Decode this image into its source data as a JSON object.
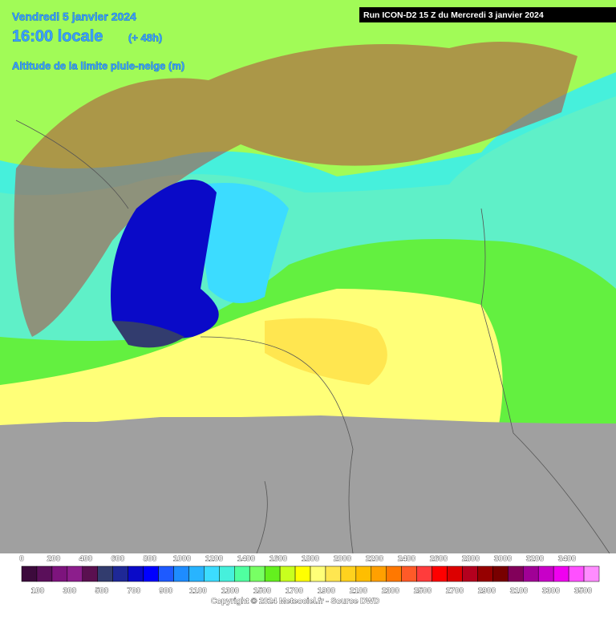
{
  "header": {
    "date": "Vendredi 5 janvier 2024",
    "time": "16:00 locale",
    "lead": "(+ 48h)",
    "variable": "Altitude de la limite pluie-neige (m)",
    "run": "Run ICON-D2 15 Z du Mercredi 3 janvier 2024"
  },
  "legend": {
    "top_labels": [
      0,
      200,
      400,
      600,
      800,
      1000,
      1200,
      1400,
      1600,
      1800,
      2000,
      2200,
      2400,
      2600,
      2800,
      3000,
      3200,
      3400
    ],
    "bottom_labels": [
      100,
      300,
      500,
      700,
      900,
      1100,
      1300,
      1500,
      1700,
      1900,
      2100,
      2300,
      2500,
      2700,
      2900,
      3100,
      3300,
      3500
    ],
    "colors": [
      "#3c0a3c",
      "#5a0f5a",
      "#7d147d",
      "#8c1e8c",
      "#5a1050",
      "#323c6e",
      "#1e2896",
      "#0a0ac8",
      "#0000ff",
      "#1e5aff",
      "#1e8cff",
      "#28b4ff",
      "#3cdcff",
      "#46f0dc",
      "#50ffa0",
      "#78ff64",
      "#64f01e",
      "#c8ff1e",
      "#ffff00",
      "#ffff78",
      "#ffe650",
      "#ffd21e",
      "#ffbe00",
      "#ffa000",
      "#ff7800",
      "#ff5a28",
      "#ff3c3c",
      "#ff0000",
      "#dc0000",
      "#b4001e",
      "#960000",
      "#780000",
      "#82005a",
      "#a00096",
      "#c800c8",
      "#f000f0",
      "#ff50ff",
      "#ff8cff"
    ]
  },
  "footer": {
    "copyright": "Copyright © 2024 Meteociel.fr - Source DWD"
  }
}
